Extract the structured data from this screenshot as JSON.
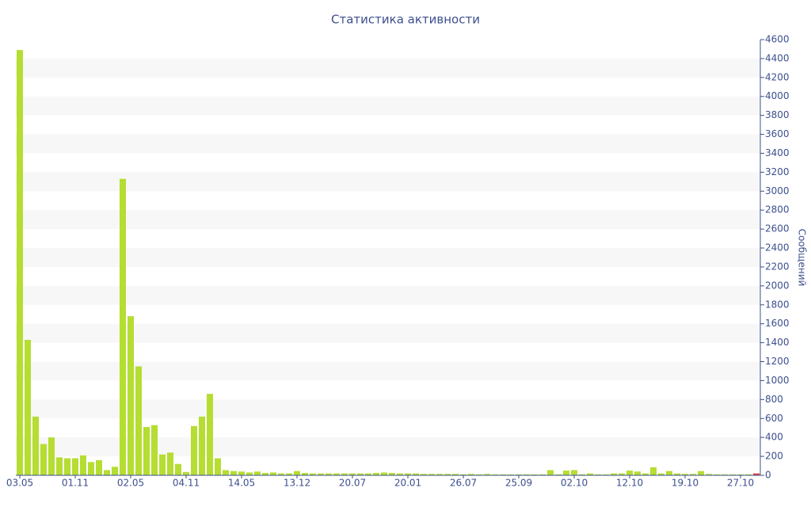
{
  "chart_data": {
    "type": "bar",
    "title": "Статистика активности",
    "y_label": "Сообщений",
    "categories": [
      "03.05",
      null,
      null,
      null,
      null,
      null,
      null,
      "01.11",
      null,
      null,
      null,
      null,
      null,
      null,
      "02.05",
      null,
      null,
      null,
      null,
      null,
      null,
      "04.11",
      null,
      null,
      null,
      null,
      null,
      null,
      "14.05",
      null,
      null,
      null,
      null,
      null,
      null,
      "13.12",
      null,
      null,
      null,
      null,
      null,
      null,
      "20.07",
      null,
      null,
      null,
      null,
      null,
      null,
      "20.01",
      null,
      null,
      null,
      null,
      null,
      null,
      "26.07",
      null,
      null,
      null,
      null,
      null,
      null,
      "25.09",
      null,
      null,
      null,
      null,
      null,
      null,
      "02.10",
      null,
      null,
      null,
      null,
      null,
      null,
      "12.10",
      null,
      null,
      null,
      null,
      null,
      null,
      "19.10",
      null,
      null,
      null,
      null,
      null,
      null,
      "27.10",
      null,
      null
    ],
    "values": [
      4490,
      1430,
      620,
      330,
      400,
      190,
      180,
      180,
      210,
      140,
      160,
      55,
      90,
      3130,
      1680,
      1150,
      510,
      530,
      220,
      240,
      120,
      35,
      520,
      620,
      860,
      180,
      55,
      45,
      40,
      30,
      40,
      25,
      30,
      20,
      20,
      45,
      25,
      20,
      20,
      20,
      20,
      20,
      20,
      20,
      20,
      25,
      30,
      25,
      20,
      20,
      20,
      15,
      15,
      15,
      15,
      15,
      10,
      15,
      10,
      15,
      10,
      10,
      10,
      10,
      10,
      10,
      10,
      55,
      10,
      50,
      55,
      10,
      20,
      10,
      10,
      20,
      20,
      50,
      40,
      20,
      85,
      20,
      45,
      20,
      15,
      15,
      45,
      15,
      10,
      10,
      10,
      10,
      10,
      20
    ],
    "color": "#b5dd32",
    "last_color": "#e0463c",
    "stripe_color": "#f7f7f7",
    "ylim": [
      0,
      4600
    ],
    "yticks": [
      0,
      200,
      400,
      600,
      800,
      1000,
      1200,
      1400,
      1600,
      1800,
      2000,
      2200,
      2400,
      2600,
      2800,
      3000,
      3200,
      3400,
      3600,
      3800,
      4000,
      4200,
      4400,
      4600
    ],
    "grid": true
  }
}
